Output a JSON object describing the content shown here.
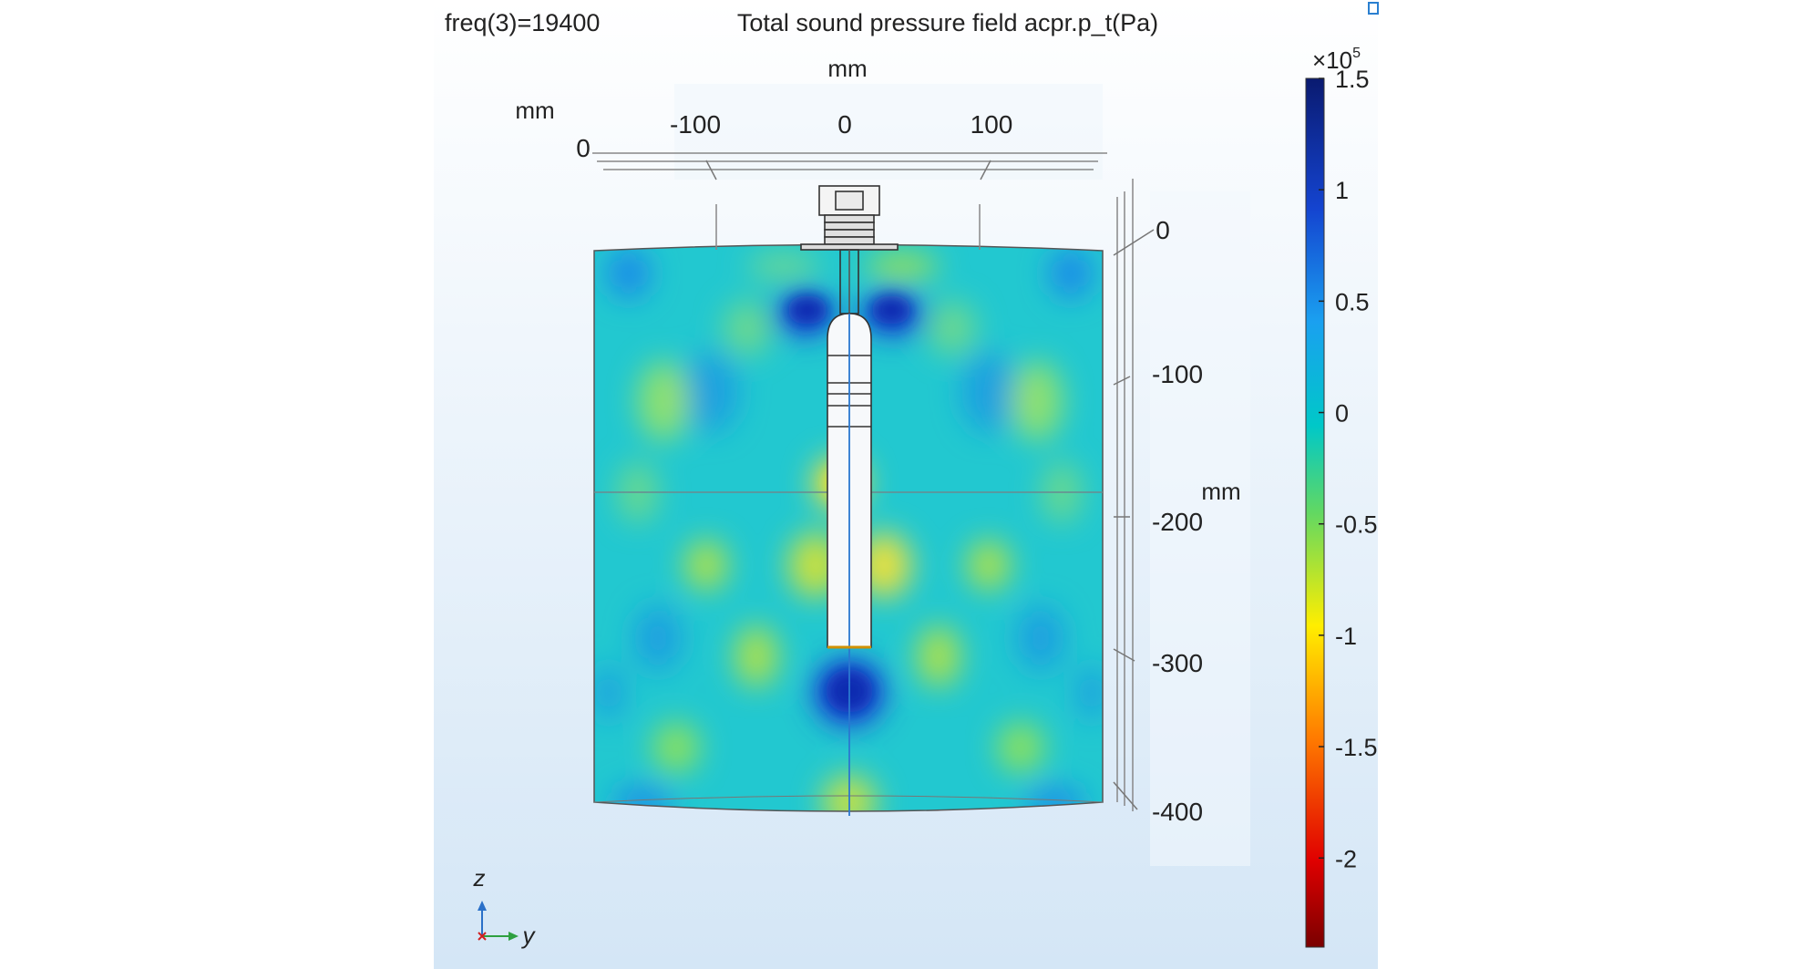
{
  "header": {
    "freq_label": "freq(3)=19400",
    "title": "Total sound pressure field acpr.p_t(Pa)"
  },
  "axes": {
    "y_axis_unit": "mm",
    "x_axis_unit": "mm",
    "z_axis_unit": "mm",
    "y_ticks": [
      "-100",
      "0",
      "100"
    ],
    "x_tick": "0",
    "z_ticks": [
      "0",
      "-100",
      "-200",
      "-300",
      "-400"
    ]
  },
  "colorbar": {
    "multiplier": "×10",
    "exponent": "5",
    "ticks": [
      "1.5",
      "1",
      "0.5",
      "0",
      "-0.5",
      "-1",
      "-1.5",
      "-2"
    ],
    "range": [
      -2.4,
      1.5
    ],
    "colors": [
      "#7f0000",
      "#ff0000",
      "#ff8c00",
      "#ffff00",
      "#40d080",
      "#00c8c8",
      "#1e64ff",
      "#0a1e78"
    ]
  },
  "triad": {
    "vertical_label": "z",
    "horizontal_label": "y"
  },
  "chart_data": {
    "type": "heatmap",
    "title": "Total sound pressure field acpr.p_t(Pa)",
    "annotation": "freq(3)=19400",
    "xlabel": "mm",
    "ylabel": "mm",
    "x_ticks": [
      -100,
      0,
      100
    ],
    "z_ticks": [
      0,
      -100,
      -200,
      -300,
      -400
    ],
    "colorbar_range": [
      -240000.0,
      150000.0
    ],
    "colorbar_ticks": [
      150000.0,
      100000.0,
      50000.0,
      0,
      -50000.0,
      -100000.0,
      -150000.0,
      -200000.0
    ],
    "legend": "right"
  }
}
